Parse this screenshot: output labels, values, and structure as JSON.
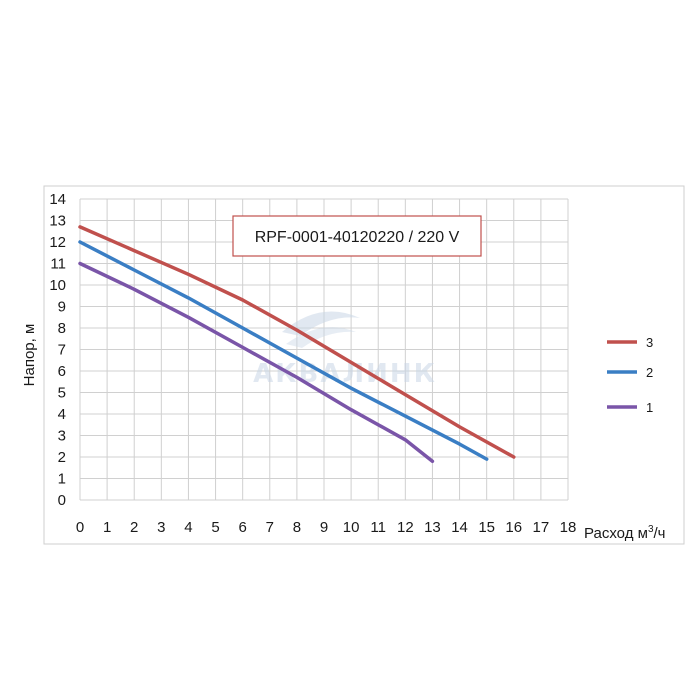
{
  "chart_data": {
    "type": "line",
    "title": "RPF-0001-40120220 / 220 V",
    "xlabel": "Расход м",
    "xlabel_sup": "3",
    "xlabel_suffix": "/ч",
    "ylabel": "Напор, м",
    "xlim": [
      0,
      18
    ],
    "ylim": [
      0,
      14
    ],
    "xticks": [
      0,
      1,
      2,
      3,
      4,
      5,
      6,
      7,
      8,
      9,
      10,
      11,
      12,
      13,
      14,
      15,
      16,
      17,
      18
    ],
    "yticks": [
      0,
      1,
      2,
      3,
      4,
      5,
      6,
      7,
      8,
      9,
      10,
      11,
      12,
      13,
      14
    ],
    "grid": true,
    "legend_position": "right",
    "watermark": "АКВАЛИНК",
    "series": [
      {
        "name": "3",
        "color": "#c0504d",
        "x": [
          0,
          2,
          4,
          6,
          8,
          10,
          12,
          14,
          16
        ],
        "y": [
          12.7,
          11.6,
          10.5,
          9.3,
          7.9,
          6.4,
          4.9,
          3.4,
          2.0
        ]
      },
      {
        "name": "2",
        "color": "#3a7ec4",
        "x": [
          0,
          2,
          4,
          6,
          8,
          10,
          12,
          14,
          15
        ],
        "y": [
          12.0,
          10.7,
          9.4,
          8.0,
          6.6,
          5.2,
          3.9,
          2.6,
          1.9
        ]
      },
      {
        "name": "1",
        "color": "#7a55a8",
        "x": [
          0,
          2,
          4,
          6,
          8,
          10,
          12,
          13
        ],
        "y": [
          11.0,
          9.8,
          8.5,
          7.1,
          5.7,
          4.2,
          2.8,
          1.8
        ]
      }
    ]
  }
}
